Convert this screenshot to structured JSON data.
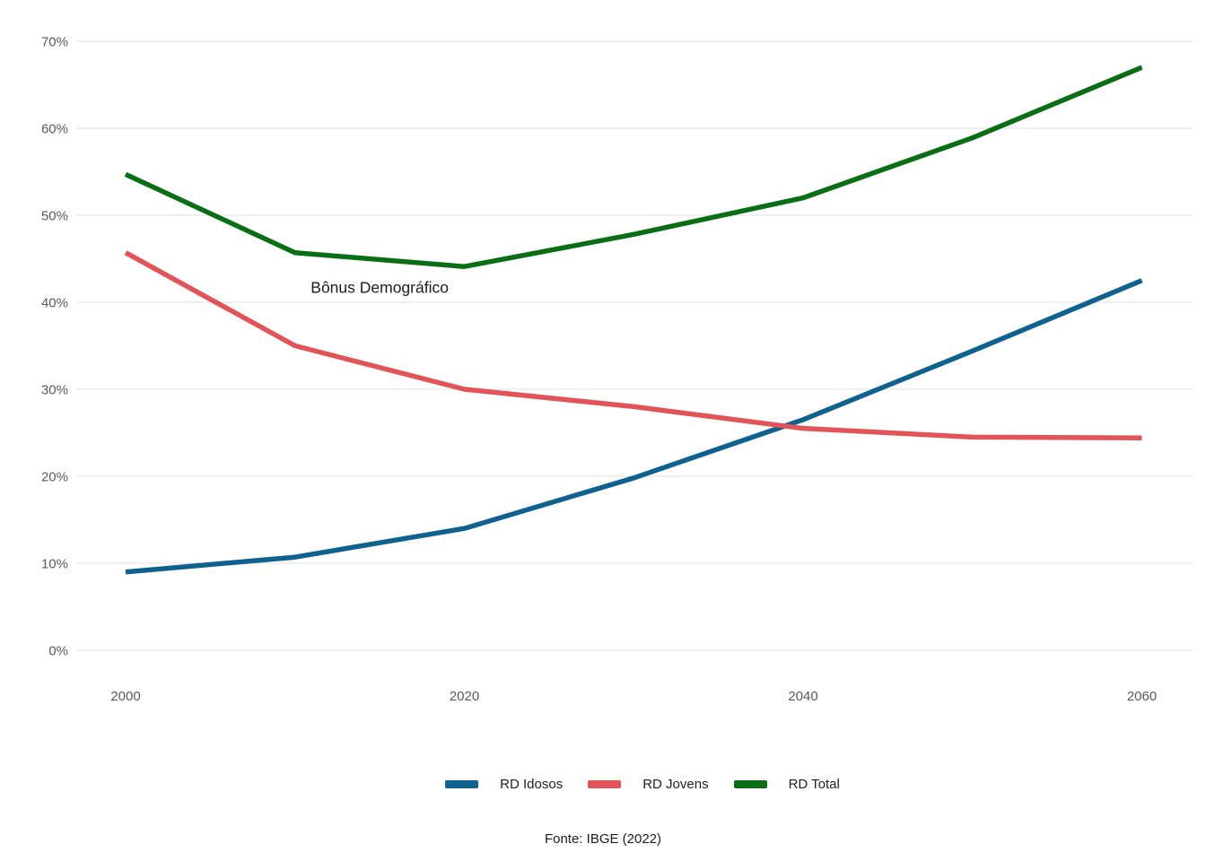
{
  "chart_data": {
    "type": "line",
    "title": "",
    "xlabel": "",
    "ylabel": "",
    "x": [
      2000,
      2010,
      2020,
      2030,
      2040,
      2050,
      2060
    ],
    "series": [
      {
        "name": "RD Idosos",
        "color": "#0F618F",
        "values": [
          9.0,
          10.7,
          14.0,
          19.8,
          26.5,
          34.4,
          42.5
        ]
      },
      {
        "name": "RD Jovens",
        "color": "#E25458",
        "values": [
          45.7,
          35.0,
          30.0,
          28.0,
          25.5,
          24.5,
          24.4
        ]
      },
      {
        "name": "RD Total",
        "color": "#0A6E14",
        "values": [
          54.7,
          45.7,
          44.1,
          47.8,
          52.0,
          58.9,
          67.0
        ]
      }
    ],
    "ylim": [
      0,
      70
    ],
    "ytick_values": [
      0,
      10,
      20,
      30,
      40,
      50,
      60,
      70
    ],
    "ytick_labels": [
      "0%",
      "10%",
      "20%",
      "30%",
      "40%",
      "50%",
      "60%",
      "70%"
    ],
    "xtick_values": [
      2000,
      2020,
      2040,
      2060
    ],
    "xtick_labels": [
      "2000",
      "2020",
      "2040",
      "2060"
    ],
    "grid": true,
    "legend_position": "bottom",
    "annotation": {
      "text": "Bônus Demográfico",
      "x": 2015,
      "y": 41.7
    }
  },
  "colors": {
    "background": "#ffffff",
    "gridline": "#e8e8e8",
    "tick_text": "#595959",
    "annotation_text": "#1c1c1c"
  },
  "footer": {
    "source": "Fonte: IBGE (2022)"
  }
}
